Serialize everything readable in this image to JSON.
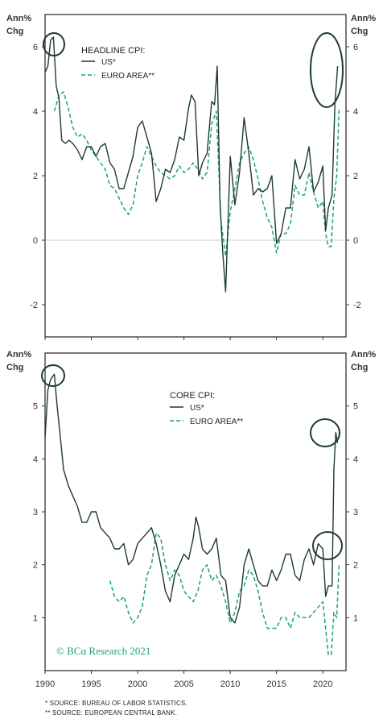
{
  "colors": {
    "us": "#1d3a36",
    "euro": "#1aa37a",
    "axis": "#333333",
    "zero": "#bbbbbb"
  },
  "credit": "© BCα Research 2021",
  "footnotes": [
    "* SOURCE: BUREAU OF LABOR STATISTICS.",
    "** SOURCE: EUROPEAN CENTRAL BANK."
  ],
  "chart_data": [
    {
      "type": "line",
      "title": "HEADLINE CPI:",
      "ylabel": "Ann% Chg",
      "ylabel_lines": [
        "Ann%",
        "Chg"
      ],
      "ylim": [
        -3,
        7
      ],
      "yticks": [
        -2,
        0,
        2,
        4,
        6
      ],
      "xlim": [
        1990,
        2022.5
      ],
      "xticks": [
        1990,
        1995,
        2000,
        2005,
        2010,
        2015,
        2020
      ],
      "legend": [
        "US*",
        "EURO AREA**"
      ],
      "series": [
        {
          "name": "US*",
          "x": [
            1990,
            1990.3,
            1990.6,
            1990.9,
            1991.2,
            1991.5,
            1991.8,
            1992.2,
            1992.6,
            1993,
            1993.5,
            1994,
            1994.5,
            1995,
            1995.5,
            1996,
            1996.5,
            1997,
            1997.5,
            1998,
            1998.5,
            1999,
            1999.5,
            2000,
            2000.5,
            2001,
            2001.5,
            2002,
            2002.5,
            2003,
            2003.5,
            2004,
            2004.5,
            2005,
            2005.5,
            2005.8,
            2006.2,
            2006.6,
            2007,
            2007.5,
            2008,
            2008.3,
            2008.6,
            2008.9,
            2009.2,
            2009.5,
            2010,
            2010.5,
            2011,
            2011.5,
            2012,
            2012.5,
            2013,
            2013.5,
            2014,
            2014.5,
            2015,
            2015.5,
            2016,
            2016.5,
            2017,
            2017.5,
            2018,
            2018.5,
            2019,
            2019.5,
            2020,
            2020.3,
            2020.6,
            2021,
            2021.3,
            2021.6
          ],
          "values": [
            5.2,
            5.4,
            6.2,
            6.3,
            4.8,
            4.4,
            3.1,
            3.0,
            3.1,
            3.0,
            2.8,
            2.5,
            2.9,
            2.9,
            2.6,
            2.9,
            3.0,
            2.4,
            2.2,
            1.6,
            1.6,
            2.1,
            2.6,
            3.5,
            3.7,
            3.2,
            2.7,
            1.2,
            1.6,
            2.2,
            2.1,
            2.5,
            3.2,
            3.1,
            4.1,
            4.5,
            4.3,
            2.0,
            2.4,
            2.7,
            4.3,
            4.2,
            5.4,
            1.1,
            -0.4,
            -1.6,
            2.6,
            1.1,
            2.1,
            3.8,
            2.7,
            1.4,
            1.6,
            1.5,
            1.6,
            2.0,
            -0.1,
            0.2,
            1.0,
            1.0,
            2.5,
            1.9,
            2.2,
            2.9,
            1.5,
            1.8,
            2.3,
            0.3,
            1.0,
            1.4,
            4.2,
            5.4
          ]
        },
        {
          "name": "EURO AREA**",
          "x": [
            1991,
            1991.5,
            1992,
            1992.5,
            1993,
            1993.5,
            1994,
            1994.5,
            1995,
            1995.5,
            1996,
            1996.5,
            1997,
            1997.5,
            1998,
            1998.5,
            1999,
            1999.5,
            2000,
            2000.5,
            2001,
            2001.5,
            2002,
            2002.5,
            2003,
            2003.5,
            2004,
            2004.5,
            2005,
            2005.5,
            2006,
            2006.5,
            2007,
            2007.5,
            2008,
            2008.5,
            2009,
            2009.5,
            2010,
            2010.5,
            2011,
            2011.5,
            2012,
            2012.5,
            2013,
            2013.5,
            2014,
            2014.5,
            2015,
            2015.5,
            2016,
            2016.5,
            2017,
            2017.5,
            2018,
            2018.5,
            2019,
            2019.5,
            2020,
            2020.3,
            2020.6,
            2020.9,
            2021.2,
            2021.5,
            2021.75
          ],
          "values": [
            4.0,
            4.5,
            4.6,
            4.1,
            3.5,
            3.2,
            3.3,
            3.1,
            2.8,
            2.6,
            2.4,
            2.2,
            1.7,
            1.6,
            1.3,
            1.0,
            0.8,
            1.1,
            2.0,
            2.4,
            2.9,
            2.6,
            2.3,
            2.1,
            2.0,
            1.9,
            2.0,
            2.3,
            2.1,
            2.2,
            2.4,
            2.2,
            1.9,
            2.1,
            3.6,
            4.0,
            0.6,
            -0.5,
            0.9,
            1.6,
            2.4,
            2.7,
            2.9,
            2.5,
            1.9,
            1.2,
            0.7,
            0.4,
            -0.4,
            0.2,
            0.2,
            0.5,
            1.7,
            1.4,
            1.4,
            2.1,
            1.5,
            1.0,
            1.2,
            0.2,
            -0.2,
            -0.2,
            1.3,
            2.0,
            4.1
          ]
        }
      ]
    },
    {
      "type": "line",
      "title": "CORE CPI:",
      "ylabel": "Ann% Chg",
      "ylabel_lines": [
        "Ann%",
        "Chg"
      ],
      "ylim": [
        0,
        6
      ],
      "yticks": [
        1,
        2,
        3,
        4,
        5
      ],
      "xlim": [
        1990,
        2022.5
      ],
      "xticks": [
        1990,
        1995,
        2000,
        2005,
        2010,
        2015,
        2020
      ],
      "legend": [
        "US*",
        "EURO AREA**"
      ],
      "series": [
        {
          "name": "US*",
          "x": [
            1990,
            1990.3,
            1990.6,
            1991,
            1991.3,
            1991.6,
            1992,
            1992.5,
            1993,
            1993.5,
            1994,
            1994.5,
            1995,
            1995.5,
            1996,
            1996.5,
            1997,
            1997.5,
            1998,
            1998.5,
            1999,
            1999.5,
            2000,
            2000.5,
            2001,
            2001.5,
            2002,
            2002.5,
            2003,
            2003.5,
            2004,
            2004.5,
            2005,
            2005.5,
            2006,
            2006.3,
            2006.6,
            2007,
            2007.5,
            2008,
            2008.5,
            2009,
            2009.5,
            2010,
            2010.5,
            2011,
            2011.5,
            2012,
            2012.5,
            2013,
            2013.5,
            2014,
            2014.5,
            2015,
            2015.5,
            2016,
            2016.5,
            2017,
            2017.5,
            2018,
            2018.5,
            2019,
            2019.5,
            2020,
            2020.3,
            2020.6,
            2021,
            2021.2,
            2021.4,
            2021.6
          ],
          "values": [
            4.4,
            5.3,
            5.5,
            5.6,
            5.0,
            4.5,
            3.8,
            3.5,
            3.3,
            3.1,
            2.8,
            2.8,
            3.0,
            3.0,
            2.7,
            2.6,
            2.5,
            2.3,
            2.3,
            2.4,
            2.0,
            2.1,
            2.4,
            2.5,
            2.6,
            2.7,
            2.4,
            2.0,
            1.5,
            1.3,
            1.8,
            2.0,
            2.2,
            2.1,
            2.5,
            2.9,
            2.7,
            2.3,
            2.2,
            2.3,
            2.5,
            1.8,
            1.7,
            1.0,
            0.9,
            1.2,
            2.0,
            2.3,
            2.0,
            1.7,
            1.6,
            1.6,
            1.9,
            1.7,
            1.9,
            2.2,
            2.2,
            1.8,
            1.7,
            2.1,
            2.3,
            2.0,
            2.4,
            2.3,
            1.4,
            1.6,
            1.6,
            3.8,
            4.5,
            4.3
          ]
        },
        {
          "name": "EURO AREA**",
          "x": [
            1997,
            1997.5,
            1998,
            1998.5,
            1999,
            1999.5,
            2000,
            2000.5,
            2001,
            2001.5,
            2002,
            2002.5,
            2003,
            2003.5,
            2004,
            2004.5,
            2005,
            2005.5,
            2006,
            2006.5,
            2007,
            2007.5,
            2008,
            2008.5,
            2009,
            2009.5,
            2010,
            2010.5,
            2011,
            2011.5,
            2012,
            2012.5,
            2013,
            2013.5,
            2014,
            2014.5,
            2015,
            2015.5,
            2016,
            2016.5,
            2017,
            2017.5,
            2018,
            2018.5,
            2019,
            2019.5,
            2020,
            2020.3,
            2020.6,
            2020.9,
            2021.2,
            2021.5,
            2021.75
          ],
          "values": [
            1.7,
            1.4,
            1.3,
            1.4,
            1.1,
            0.9,
            1.0,
            1.2,
            1.8,
            2.0,
            2.6,
            2.5,
            2.0,
            1.7,
            1.9,
            1.8,
            1.5,
            1.4,
            1.3,
            1.5,
            1.9,
            2.0,
            1.7,
            1.8,
            1.6,
            1.3,
            0.9,
            1.1,
            1.5,
            1.6,
            1.9,
            1.8,
            1.5,
            1.1,
            0.8,
            0.8,
            0.8,
            1.0,
            1.0,
            0.8,
            1.1,
            1.0,
            1.0,
            1.0,
            1.1,
            1.2,
            1.3,
            0.8,
            0.3,
            0.3,
            1.1,
            1.0,
            2.0
          ]
        }
      ]
    }
  ]
}
